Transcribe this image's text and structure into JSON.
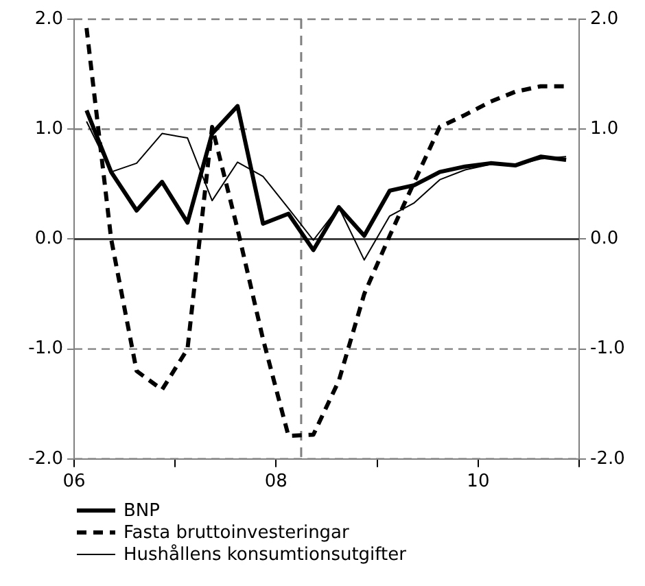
{
  "chart_data": {
    "type": "line",
    "x": [
      "2006-02-15",
      "2006-05-15",
      "2006-08-15",
      "2006-11-15",
      "2007-02-15",
      "2007-05-15",
      "2007-08-15",
      "2007-11-15",
      "2008-02-15",
      "2008-05-15",
      "2008-08-15",
      "2008-11-15",
      "2009-02-15",
      "2009-05-15",
      "2009-08-15",
      "2009-11-15",
      "2010-02-15",
      "2010-05-15",
      "2010-08-15",
      "2010-11-15"
    ],
    "xlim": [
      "2006-01-01",
      "2011-01-01"
    ],
    "xticks": [
      {
        "value": "2006-01-01",
        "label": "06"
      },
      {
        "value": "2007-01-01",
        "label": null
      },
      {
        "value": "2008-01-01",
        "label": "08"
      },
      {
        "value": "2009-01-01",
        "label": null
      },
      {
        "value": "2010-01-01",
        "label": "10"
      },
      {
        "value": "2011-01-01",
        "label": null
      }
    ],
    "series": [
      {
        "name": "BNP",
        "color": "#000000",
        "line_style": "solid",
        "values": [
          1.17,
          0.61,
          0.26,
          0.52,
          0.15,
          0.96,
          1.21,
          0.14,
          0.23,
          -0.1,
          0.29,
          0.03,
          0.44,
          0.49,
          0.61,
          0.66,
          0.69,
          0.67,
          0.75,
          0.72
        ]
      },
      {
        "name": "Fasta bruttoinvesteringar",
        "color": "#000000",
        "line_style": "dashed",
        "values": [
          1.92,
          0.0,
          -1.2,
          -1.37,
          -1.0,
          1.02,
          0.09,
          -0.91,
          -1.79,
          -1.78,
          -1.29,
          -0.5,
          0.03,
          0.52,
          1.02,
          1.13,
          1.25,
          1.34,
          1.39,
          1.39
        ]
      },
      {
        "name": "Hushållens konsumtionsutgifter",
        "color": "#000000",
        "line_style": "solid",
        "values": [
          1.07,
          0.61,
          0.69,
          0.96,
          0.92,
          0.35,
          0.7,
          0.57,
          0.28,
          -0.01,
          0.29,
          -0.19,
          0.21,
          0.33,
          0.54,
          0.63,
          0.68,
          0.67,
          0.73,
          0.75
        ]
      }
    ],
    "ylim": [
      -2,
      2
    ],
    "yticks": [
      {
        "value": -2,
        "label": "-2.0"
      },
      {
        "value": -1,
        "label": "-1.0"
      },
      {
        "value": 0,
        "label": "0.0"
      },
      {
        "value": 1,
        "label": "1.0"
      },
      {
        "value": 2,
        "label": "2.0"
      }
    ],
    "y2lim": [
      -2,
      2
    ],
    "y2ticks": [
      {
        "value": -2,
        "label": "-2.0"
      },
      {
        "value": -1,
        "label": "-1.0"
      },
      {
        "value": 0,
        "label": "0.0"
      },
      {
        "value": 1,
        "label": "1.0"
      },
      {
        "value": 2,
        "label": "2.0"
      }
    ],
    "ref_lines": [
      {
        "axis": "x",
        "value": "2008-04-01",
        "color": "#808080",
        "line_style": "dashed"
      },
      {
        "axis": "y",
        "value": 0,
        "color": "#404040",
        "line_style": "solid"
      }
    ],
    "grid": "y",
    "legend": "bottom",
    "marker": "none"
  }
}
